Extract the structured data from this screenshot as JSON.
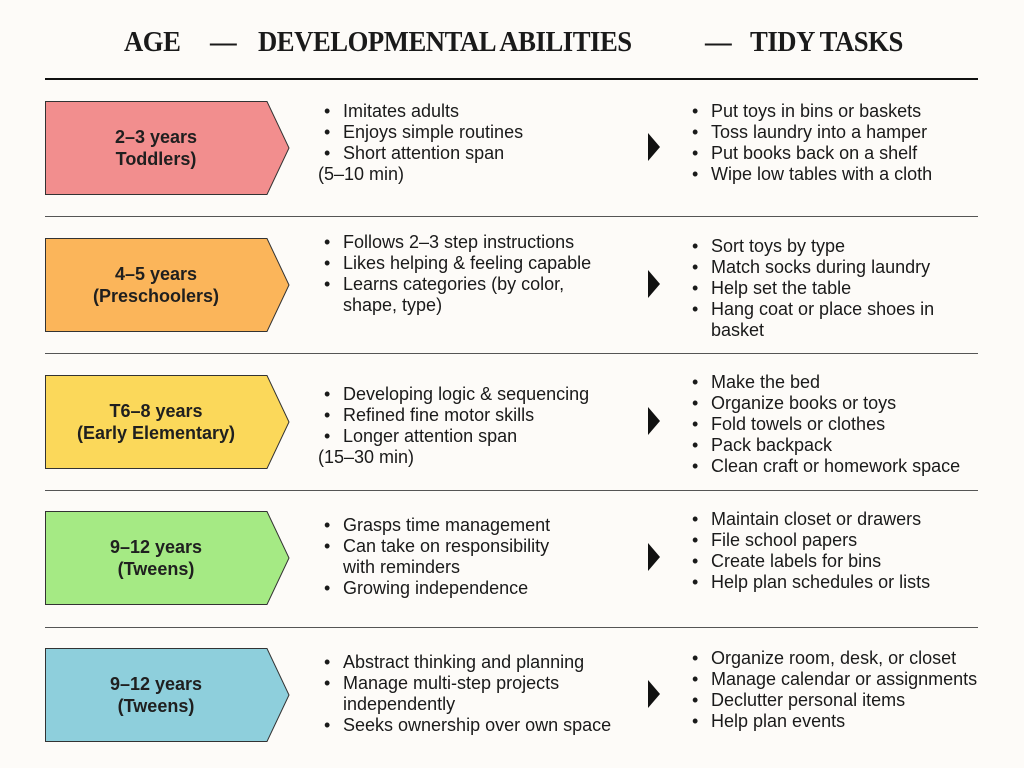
{
  "header": {
    "age": "AGE",
    "dash1": "—",
    "abilities": "DEVELOPMENTAL ABILITIES",
    "dash2": "—",
    "tasks": "TIDY TASKS"
  },
  "rows": [
    {
      "age_line1": "2–3 years",
      "age_line2": "Toddlers)",
      "color": "#f28e8e",
      "abilities": [
        {
          "t": "Imitates adults",
          "k": "b"
        },
        {
          "t": "Enjoys simple routines",
          "k": "b"
        },
        {
          "t": "Short attention span",
          "k": "b"
        },
        {
          "t": "(5–10 min)",
          "k": "n"
        }
      ],
      "tasks": [
        {
          "t": "Put toys in bins or baskets",
          "k": "b"
        },
        {
          "t": "Toss laundry into a hamper",
          "k": "b"
        },
        {
          "t": "Put books back on a shelf",
          "k": "b"
        },
        {
          "t": "Wipe low tables with a cloth",
          "k": "b"
        }
      ]
    },
    {
      "age_line1": "4–5 years",
      "age_line2": "(Preschoolers)",
      "color": "#fbb55a",
      "abilities": [
        {
          "t": "Follows 2–3 step instructions",
          "k": "b"
        },
        {
          "t": "Likes helping & feeling capable",
          "k": "b"
        },
        {
          "t": "Learns categories (by color,",
          "k": "b"
        },
        {
          "t": "shape, type)",
          "k": "c"
        }
      ],
      "tasks": [
        {
          "t": "Sort toys by type",
          "k": "b"
        },
        {
          "t": "Match socks during laundry",
          "k": "b"
        },
        {
          "t": "Help set the table",
          "k": "b"
        },
        {
          "t": "Hang coat or place shoes in",
          "k": "b"
        },
        {
          "t": "basket",
          "k": "c"
        }
      ]
    },
    {
      "age_line1": "T6–8 years",
      "age_line2": "(Early Elementary)",
      "color": "#fbd85a",
      "abilities": [
        {
          "t": "Developing logic & sequencing",
          "k": "b"
        },
        {
          "t": "Refined fine motor skills",
          "k": "b"
        },
        {
          "t": "Longer attention span",
          "k": "b"
        },
        {
          "t": "(15–30 min)",
          "k": "n"
        }
      ],
      "tasks": [
        {
          "t": "Make the bed",
          "k": "b"
        },
        {
          "t": "Organize books or toys",
          "k": "b"
        },
        {
          "t": "Fold towels or clothes",
          "k": "b"
        },
        {
          "t": "Pack backpack",
          "k": "b"
        },
        {
          "t": "Clean craft or homework space",
          "k": "b"
        }
      ]
    },
    {
      "age_line1": "9–12 years",
      "age_line2": "(Tweens)",
      "color": "#a5ea84",
      "abilities": [
        {
          "t": "Grasps time management",
          "k": "b"
        },
        {
          "t": "Can take on responsibility",
          "k": "b"
        },
        {
          "t": "with reminders",
          "k": "c"
        },
        {
          "t": "Growing independence",
          "k": "b"
        }
      ],
      "tasks": [
        {
          "t": "Maintain closet or drawers",
          "k": "b"
        },
        {
          "t": "File school papers",
          "k": "b"
        },
        {
          "t": "Create labels for bins",
          "k": "b"
        },
        {
          "t": "Help plan schedules or lists",
          "k": "b"
        }
      ]
    },
    {
      "age_line1": "9–12 years",
      "age_line2": "(Tweens)",
      "color": "#8ecfdc",
      "abilities": [
        {
          "t": "Abstract thinking and planning",
          "k": "b"
        },
        {
          "t": "Manage multi-step projects",
          "k": "b"
        },
        {
          "t": "independently",
          "k": "c"
        },
        {
          "t": "Seeks ownership over own space",
          "k": "b"
        }
      ],
      "tasks": [
        {
          "t": "Organize room, desk, or closet",
          "k": "b"
        },
        {
          "t": "Manage calendar or assignments",
          "k": "b"
        },
        {
          "t": "Declutter personal items",
          "k": "b"
        },
        {
          "t": "Help plan events",
          "k": "b"
        }
      ]
    }
  ]
}
